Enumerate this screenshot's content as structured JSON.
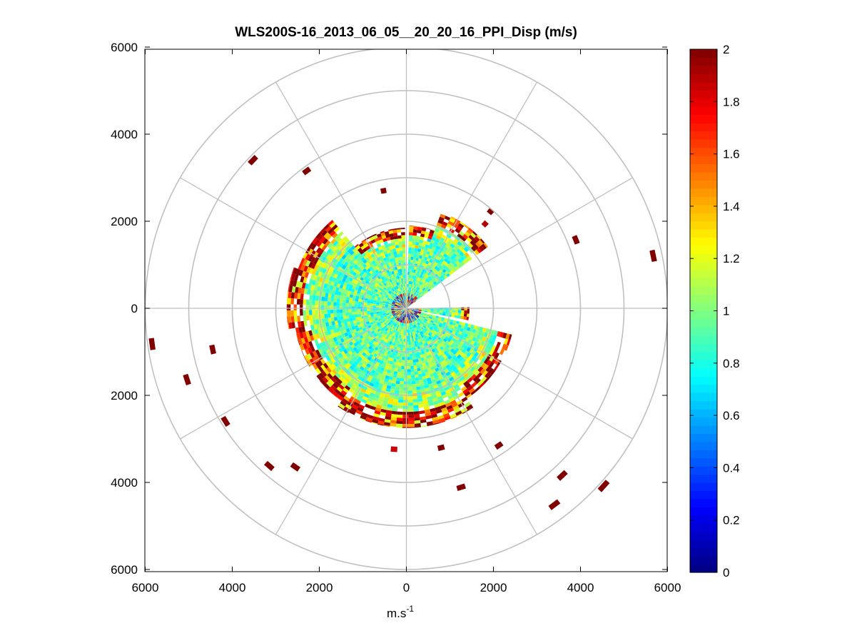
{
  "chart_data": {
    "type": "heatmap",
    "subtype": "polar-ppi",
    "title": "WLS200S-16_2013_06_05__20_20_16_PPI_Disp (m/s)",
    "xlabel": "m.s",
    "xlabel_sup": "-1",
    "ylabel": "",
    "xlim": [
      -6000,
      6000
    ],
    "ylim": [
      -6000,
      6000
    ],
    "x_ticks": [
      {
        "value": -6000,
        "label": "6000"
      },
      {
        "value": -4000,
        "label": "4000"
      },
      {
        "value": -2000,
        "label": "2000"
      },
      {
        "value": 0,
        "label": "0"
      },
      {
        "value": 2000,
        "label": "2000"
      },
      {
        "value": 4000,
        "label": "4000"
      },
      {
        "value": 6000,
        "label": "6000"
      }
    ],
    "y_ticks": [
      {
        "value": 6000,
        "label": "6000"
      },
      {
        "value": 4000,
        "label": "4000"
      },
      {
        "value": 2000,
        "label": "2000"
      },
      {
        "value": 0,
        "label": "0"
      },
      {
        "value": -2000,
        "label": "2000"
      },
      {
        "value": -4000,
        "label": "4000"
      },
      {
        "value": -6000,
        "label": "6000"
      }
    ],
    "range_rings": [
      1000,
      2000,
      3000,
      4000,
      5000,
      6000
    ],
    "spokes_deg": [
      0,
      30,
      60,
      90,
      120,
      150,
      180,
      210,
      240,
      270,
      300,
      330
    ],
    "colorbar": {
      "colormap": "jet",
      "range": [
        0,
        2
      ],
      "ticks": [
        {
          "value": 0,
          "label": "0"
        },
        {
          "value": 0.2,
          "label": "0.2"
        },
        {
          "value": 0.4,
          "label": "0.4"
        },
        {
          "value": 0.6,
          "label": "0.6"
        },
        {
          "value": 0.8,
          "label": "0.8"
        },
        {
          "value": 1,
          "label": "1"
        },
        {
          "value": 1.2,
          "label": "1.2"
        },
        {
          "value": 1.4,
          "label": "1.4"
        },
        {
          "value": 1.6,
          "label": "1.6"
        },
        {
          "value": 1.8,
          "label": "1.8"
        },
        {
          "value": 2,
          "label": "2"
        }
      ]
    },
    "scan": {
      "blocked_sectors_deg": [
        [
          -2,
          2
        ],
        [
          54,
          88
        ],
        [
          100,
          104
        ]
      ],
      "valid_range_by_sector": [
        {
          "from": 2,
          "to": 20,
          "r": 1900
        },
        {
          "from": 20,
          "to": 54,
          "r": 2350
        },
        {
          "from": 88,
          "to": 100,
          "r": 1450
        },
        {
          "from": 104,
          "to": 145,
          "r": 2500
        },
        {
          "from": 145,
          "to": 215,
          "r": 2750
        },
        {
          "from": 215,
          "to": 260,
          "r": 2600
        },
        {
          "from": 260,
          "to": 290,
          "r": 2750
        },
        {
          "from": 290,
          "to": 320,
          "r": 2650
        },
        {
          "from": 320,
          "to": 358,
          "r": 1850
        }
      ],
      "outlier_gates": [
        {
          "az": 349,
          "r": 2750,
          "v": 2.0
        },
        {
          "az": 324,
          "r": 3900,
          "v": 2.0
        },
        {
          "az": 314,
          "r": 4900,
          "v": 2.0
        },
        {
          "az": 262,
          "r": 5900,
          "v": 2.0
        },
        {
          "az": 252,
          "r": 5300,
          "v": 2.0
        },
        {
          "az": 258,
          "r": 4550,
          "v": 2.0
        },
        {
          "az": 238,
          "r": 4900,
          "v": 2.0
        },
        {
          "az": 221,
          "r": 4800,
          "v": 2.0
        },
        {
          "az": 215,
          "r": 4450,
          "v": 2.0
        },
        {
          "az": 185,
          "r": 3250,
          "v": 1.85
        },
        {
          "az": 166,
          "r": 3300,
          "v": 2.0
        },
        {
          "az": 163,
          "r": 4300,
          "v": 2.0
        },
        {
          "az": 146,
          "r": 3800,
          "v": 2.0
        },
        {
          "az": 137,
          "r": 5250,
          "v": 2.0
        },
        {
          "az": 132,
          "r": 6100,
          "v": 2.0
        },
        {
          "az": 143,
          "r": 5650,
          "v": 2.0
        },
        {
          "az": 68,
          "r": 4200,
          "v": 2.0
        },
        {
          "az": 78,
          "r": 5800,
          "v": 2.0
        },
        {
          "az": 41,
          "r": 2950,
          "v": 2.0
        },
        {
          "az": 43,
          "r": 2650,
          "v": 1.9
        }
      ]
    }
  }
}
